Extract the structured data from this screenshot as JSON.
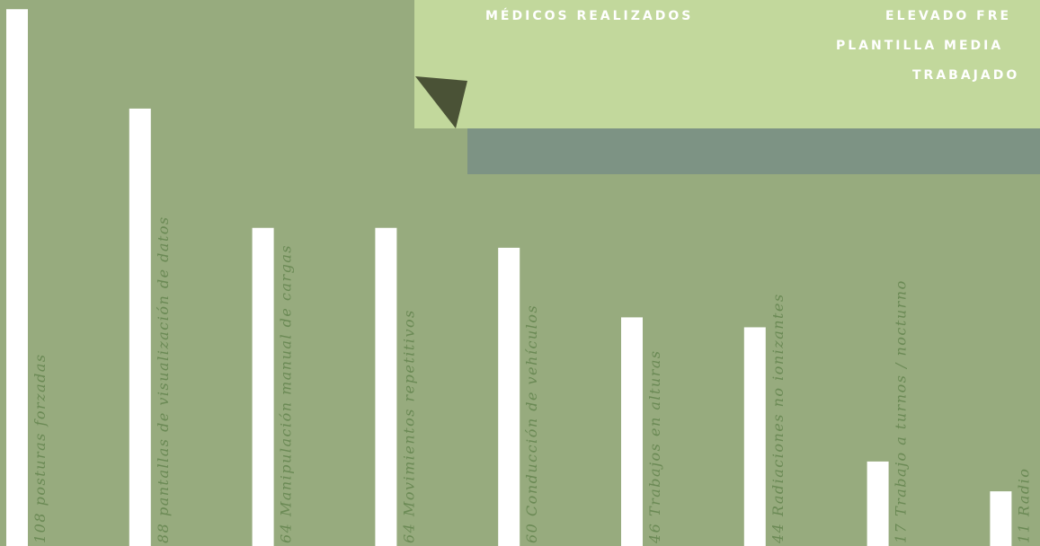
{
  "header": {
    "center_title": "MÉDICOS REALIZADOS",
    "right_lines": [
      "ELEVADO FRE",
      "PLANTILLA MEDIA",
      "TRABAJADO"
    ]
  },
  "chart_data": {
    "type": "bar",
    "color": "#ffffff",
    "categories": [
      "posturas forzadas",
      "pantallas de visualización de datos",
      "Manipulación manual de cargas",
      "Movimientos repetitivos",
      "Conducción de vehículos",
      "Trabajos en alturas",
      "Radiaciones no ionizantes",
      "Trabajo a turnos / nocturno",
      "Radio"
    ],
    "values": [
      108,
      88,
      64,
      64,
      60,
      46,
      44,
      17,
      11
    ]
  }
}
